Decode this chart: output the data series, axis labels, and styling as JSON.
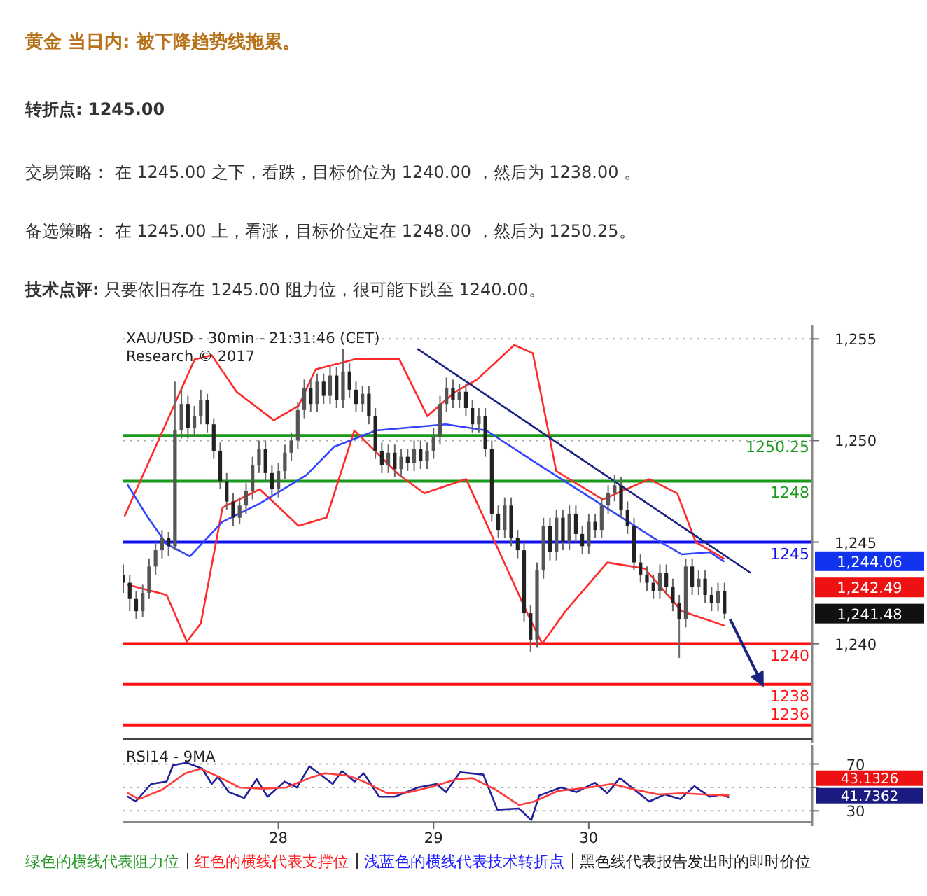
{
  "chart_data": [
    {
      "type": "candlestick",
      "title": "黄金 当日内: 被下降趋势线拖累。",
      "annotations": [
        "转折点: 1245.00",
        "交易策略： 在 1245.00 之下，看跌，目标价位为 1240.00 ，然后为 1238.00 。",
        "备选策略： 在 1245.00 上，看涨，目标价位定在 1248.00 ，然后为 1250.25。",
        "技术点评: 只要依旧存在 1245.00 阻力位，很可能下跌至 1240.00。",
        "XAU/USD - 30min - 21:31:46 (CET)",
        "Research © 2017",
        "1,244.06",
        "1,242.49",
        "1,241.48"
      ],
      "x": [
        27.0,
        27.0417,
        27.0833,
        27.125,
        27.1667,
        27.2083,
        27.25,
        27.2917,
        27.3333,
        27.375,
        27.4167,
        27.4583,
        27.5,
        27.5417,
        27.5833,
        27.625,
        27.6667,
        27.7083,
        27.75,
        27.7917,
        27.8333,
        27.875,
        27.9167,
        27.9583,
        28.0,
        28.0417,
        28.0833,
        28.125,
        28.1667,
        28.2083,
        28.25,
        28.2917,
        28.3333,
        28.375,
        28.4167,
        28.4583,
        28.5,
        28.5417,
        28.5833,
        28.625,
        28.6667,
        28.7083,
        28.75,
        28.7917,
        28.8333,
        28.875,
        28.9167,
        28.9583,
        29.0,
        29.0417,
        29.0833,
        29.125,
        29.1667,
        29.2083,
        29.25,
        29.2917,
        29.3333,
        29.375,
        29.4167,
        29.4583,
        29.5,
        29.5417,
        29.5833,
        29.625,
        29.6667,
        29.7083,
        29.75,
        29.7917,
        29.8333,
        29.875,
        29.9167,
        29.9583,
        30.0,
        30.0417,
        30.0833,
        30.125,
        30.1667,
        30.2083,
        30.25,
        30.2917,
        30.3333,
        30.375,
        30.4167,
        30.4583,
        30.5,
        30.5417,
        30.5833,
        30.625,
        30.6667,
        30.7083,
        30.75,
        30.7917,
        30.8333,
        30.875
      ],
      "ohlc": [
        [
          1243.4,
          1243.9,
          1242.5,
          1243.0
        ],
        [
          1243.0,
          1243.4,
          1241.6,
          1242.2
        ],
        [
          1242.2,
          1242.6,
          1241.2,
          1241.6
        ],
        [
          1241.6,
          1242.9,
          1241.3,
          1242.5
        ],
        [
          1242.5,
          1244.2,
          1242.2,
          1243.8
        ],
        [
          1243.8,
          1245.0,
          1243.4,
          1244.6
        ],
        [
          1244.6,
          1245.6,
          1244.2,
          1245.2
        ],
        [
          1245.2,
          1245.5,
          1244.3,
          1244.8
        ],
        [
          1244.8,
          1252.9,
          1244.6,
          1250.5
        ],
        [
          1250.5,
          1252.6,
          1250.1,
          1251.8
        ],
        [
          1251.8,
          1252.2,
          1250.1,
          1250.6
        ],
        [
          1250.6,
          1251.7,
          1250.2,
          1251.2
        ],
        [
          1251.2,
          1252.5,
          1250.8,
          1252.0
        ],
        [
          1252.0,
          1252.3,
          1250.4,
          1250.8
        ],
        [
          1250.8,
          1251.1,
          1249.1,
          1249.5
        ],
        [
          1249.5,
          1249.9,
          1247.6,
          1248.0
        ],
        [
          1248.0,
          1248.4,
          1246.6,
          1247.0
        ],
        [
          1247.0,
          1247.4,
          1245.8,
          1246.2
        ],
        [
          1246.2,
          1247.2,
          1245.9,
          1246.8
        ],
        [
          1246.8,
          1247.9,
          1246.4,
          1247.5
        ],
        [
          1247.5,
          1249.2,
          1247.1,
          1248.8
        ],
        [
          1248.8,
          1250.0,
          1248.4,
          1249.6
        ],
        [
          1249.6,
          1250.0,
          1248.0,
          1248.4
        ],
        [
          1248.4,
          1248.8,
          1247.2,
          1247.6
        ],
        [
          1247.6,
          1248.9,
          1247.2,
          1248.5
        ],
        [
          1248.5,
          1249.8,
          1248.1,
          1249.4
        ],
        [
          1249.4,
          1250.4,
          1249.0,
          1250.0
        ],
        [
          1250.0,
          1251.9,
          1249.6,
          1251.5
        ],
        [
          1251.5,
          1253.0,
          1251.1,
          1252.6
        ],
        [
          1252.6,
          1253.0,
          1251.4,
          1251.8
        ],
        [
          1251.8,
          1253.3,
          1251.4,
          1252.9
        ],
        [
          1252.9,
          1253.3,
          1251.8,
          1252.2
        ],
        [
          1252.2,
          1253.6,
          1251.8,
          1253.2
        ],
        [
          1253.2,
          1253.6,
          1251.6,
          1252.0
        ],
        [
          1252.0,
          1254.5,
          1251.6,
          1253.4
        ],
        [
          1253.4,
          1253.8,
          1252.1,
          1252.5
        ],
        [
          1252.5,
          1252.9,
          1251.4,
          1251.8
        ],
        [
          1251.8,
          1252.7,
          1251.4,
          1252.3
        ],
        [
          1252.3,
          1252.7,
          1250.8,
          1251.2
        ],
        [
          1251.2,
          1251.6,
          1249.1,
          1249.5
        ],
        [
          1249.5,
          1249.9,
          1248.4,
          1248.8
        ],
        [
          1248.8,
          1249.8,
          1248.4,
          1249.4
        ],
        [
          1249.4,
          1249.8,
          1248.2,
          1248.6
        ],
        [
          1248.6,
          1249.6,
          1248.2,
          1249.2
        ],
        [
          1249.2,
          1249.6,
          1248.5,
          1248.9
        ],
        [
          1248.9,
          1250.0,
          1248.5,
          1249.6
        ],
        [
          1249.6,
          1250.0,
          1248.6,
          1249.0
        ],
        [
          1249.0,
          1249.9,
          1248.6,
          1249.5
        ],
        [
          1249.5,
          1250.6,
          1249.1,
          1250.2
        ],
        [
          1250.2,
          1252.2,
          1249.8,
          1251.8
        ],
        [
          1251.8,
          1253.1,
          1251.4,
          1252.6
        ],
        [
          1252.6,
          1253.0,
          1251.6,
          1252.0
        ],
        [
          1252.0,
          1252.8,
          1251.6,
          1252.4
        ],
        [
          1252.4,
          1252.8,
          1251.2,
          1251.6
        ],
        [
          1251.6,
          1252.0,
          1250.4,
          1250.8
        ],
        [
          1250.8,
          1251.6,
          1250.4,
          1251.2
        ],
        [
          1251.2,
          1251.6,
          1249.2,
          1249.6
        ],
        [
          1249.6,
          1250.0,
          1246.0,
          1246.4
        ],
        [
          1246.4,
          1246.8,
          1245.2,
          1245.6
        ],
        [
          1245.6,
          1247.2,
          1245.2,
          1246.8
        ],
        [
          1246.8,
          1247.2,
          1244.8,
          1245.2
        ],
        [
          1245.2,
          1245.6,
          1244.2,
          1244.6
        ],
        [
          1244.6,
          1245.0,
          1241.1,
          1241.5
        ],
        [
          1241.5,
          1241.9,
          1239.6,
          1240.2
        ],
        [
          1240.2,
          1244.0,
          1239.8,
          1243.6
        ],
        [
          1243.6,
          1246.2,
          1243.2,
          1245.8
        ],
        [
          1245.8,
          1246.2,
          1244.1,
          1244.5
        ],
        [
          1244.5,
          1246.6,
          1244.1,
          1246.2
        ],
        [
          1246.2,
          1246.6,
          1244.6,
          1245.0
        ],
        [
          1245.0,
          1246.8,
          1244.6,
          1246.4
        ],
        [
          1246.4,
          1246.8,
          1245.0,
          1245.4
        ],
        [
          1245.4,
          1245.8,
          1244.4,
          1244.8
        ],
        [
          1244.8,
          1246.4,
          1244.4,
          1246.0
        ],
        [
          1246.0,
          1246.4,
          1245.2,
          1245.6
        ],
        [
          1245.6,
          1247.2,
          1245.2,
          1246.8
        ],
        [
          1246.8,
          1247.8,
          1246.4,
          1247.4
        ],
        [
          1247.4,
          1248.3,
          1247.0,
          1247.8
        ],
        [
          1247.8,
          1248.2,
          1246.2,
          1246.6
        ],
        [
          1246.6,
          1247.0,
          1245.4,
          1245.8
        ],
        [
          1245.8,
          1246.2,
          1243.6,
          1244.0
        ],
        [
          1244.0,
          1244.4,
          1243.0,
          1243.4
        ],
        [
          1243.4,
          1243.8,
          1242.6,
          1243.0
        ],
        [
          1243.0,
          1243.4,
          1242.2,
          1242.6
        ],
        [
          1242.6,
          1243.9,
          1242.2,
          1243.5
        ],
        [
          1243.5,
          1243.9,
          1242.4,
          1242.8
        ],
        [
          1242.8,
          1243.2,
          1241.6,
          1242.0
        ],
        [
          1242.0,
          1242.4,
          1239.3,
          1241.2
        ],
        [
          1241.2,
          1244.2,
          1240.8,
          1243.8
        ],
        [
          1243.8,
          1244.2,
          1242.4,
          1242.8
        ],
        [
          1242.8,
          1243.6,
          1242.4,
          1243.2
        ],
        [
          1243.2,
          1243.6,
          1242.0,
          1242.4
        ],
        [
          1242.4,
          1242.8,
          1241.6,
          1242.0
        ],
        [
          1242.0,
          1243.0,
          1241.6,
          1242.6
        ],
        [
          1242.6,
          1243.0,
          1241.2,
          1241.48
        ]
      ],
      "series": [
        {
          "type": "line",
          "color": "#ff2a2a",
          "x": [
            27.01,
            27.46,
            27.57,
            27.73,
            27.97,
            28.13,
            28.24,
            28.49,
            28.78,
            28.96,
            29.14,
            29.28,
            29.52,
            29.64,
            29.79,
            30.09,
            30.39,
            30.57,
            30.69,
            30.87
          ],
          "values": [
            1246.3,
            1254.0,
            1254.2,
            1252.4,
            1251.0,
            1251.7,
            1253.5,
            1254.0,
            1254.0,
            1251.2,
            1252.4,
            1253.0,
            1254.7,
            1254.3,
            1248.5,
            1247.1,
            1248.1,
            1247.4,
            1245.0,
            1244.2
          ]
        },
        {
          "type": "line",
          "color": "#ff2a2a",
          "x": [
            27.03,
            27.28,
            27.41,
            27.5,
            27.64,
            27.88,
            28.13,
            28.31,
            28.49,
            28.78,
            28.94,
            29.21,
            29.61,
            29.7,
            29.85,
            30.12,
            30.36,
            30.6,
            30.87
          ],
          "values": [
            1242.9,
            1242.4,
            1240.1,
            1241.0,
            1246.7,
            1247.6,
            1245.8,
            1246.2,
            1250.5,
            1248.3,
            1247.4,
            1248.1,
            1241.4,
            1240.0,
            1241.6,
            1244.0,
            1243.7,
            1241.6,
            1240.9
          ]
        },
        {
          "type": "line",
          "color": "#3344ff",
          "x": [
            27.03,
            27.16,
            27.28,
            27.43,
            27.64,
            27.88,
            28.18,
            28.36,
            28.63,
            29.08,
            29.34,
            29.7,
            30.09,
            30.42,
            30.6,
            30.78,
            30.87
          ],
          "values": [
            1247.8,
            1246.2,
            1244.9,
            1244.3,
            1246.0,
            1246.9,
            1248.3,
            1249.7,
            1250.5,
            1250.8,
            1250.5,
            1248.7,
            1246.8,
            1245.2,
            1244.4,
            1244.5,
            1244.06
          ]
        },
        {
          "type": "line",
          "color": "#1a237e",
          "x": [
            28.9,
            31.04
          ],
          "values": [
            1254.5,
            1243.5
          ]
        }
      ],
      "xlim": [
        27.0,
        31.44
      ],
      "ylim": [
        1235.3,
        1255.7
      ],
      "yticks": [
        {
          "value": 1255,
          "label": "1,255"
        },
        {
          "value": 1250,
          "label": "1,250"
        },
        {
          "value": 1245,
          "label": "1,245"
        },
        {
          "value": 1240,
          "label": "1,240"
        }
      ],
      "grid": "y",
      "tick_labels": "y",
      "ref_lines": [
        {
          "axis": "y",
          "value": 1250.25,
          "label": "1250.25",
          "color": "#1a9a1a"
        },
        {
          "axis": "y",
          "value": 1248,
          "label": "1248",
          "color": "#1a9a1a"
        },
        {
          "axis": "y",
          "value": 1245,
          "label": "1245",
          "color": "#1010ee"
        },
        {
          "axis": "y",
          "value": 1240,
          "label": "1240",
          "color": "#ff1010"
        },
        {
          "axis": "y",
          "value": 1238,
          "label": "1238",
          "color": "#ff1010"
        },
        {
          "axis": "y",
          "value": 1236,
          "label": "1236",
          "color": "#ff1010"
        }
      ]
    },
    {
      "type": "line",
      "title": "RSI14 - 9MA",
      "series": [
        {
          "color": "#22229a",
          "x": [
            27.03,
            27.08,
            27.18,
            27.28,
            27.32,
            27.41,
            27.51,
            27.57,
            27.61,
            27.68,
            27.78,
            27.86,
            27.93,
            28.04,
            28.12,
            28.2,
            28.35,
            28.41,
            28.49,
            28.55,
            28.65,
            28.75,
            28.9,
            29.02,
            29.08,
            29.17,
            29.32,
            29.41,
            29.55,
            29.63,
            29.68,
            29.82,
            29.92,
            30.04,
            30.12,
            30.2,
            30.39,
            30.49,
            30.59,
            30.68,
            30.78,
            30.86,
            30.9
          ],
          "values": [
            42,
            38,
            53,
            55,
            69,
            71,
            66,
            53,
            59,
            46,
            41,
            57,
            42,
            55,
            50,
            68,
            53,
            64,
            55,
            62,
            42,
            42,
            50,
            53,
            46,
            63,
            61,
            31,
            32,
            22,
            43,
            50,
            46,
            54,
            45,
            58,
            38,
            44,
            40,
            51,
            42,
            44,
            41.74
          ]
        },
        {
          "color": "#ff3b3b",
          "x": [
            27.03,
            27.1,
            27.25,
            27.4,
            27.5,
            27.6,
            27.75,
            27.9,
            28.05,
            28.2,
            28.3,
            28.45,
            28.55,
            28.7,
            28.85,
            29.0,
            29.15,
            29.25,
            29.4,
            29.55,
            29.65,
            29.8,
            30.0,
            30.15,
            30.3,
            30.45,
            30.6,
            30.75,
            30.9
          ],
          "values": [
            45,
            40,
            48,
            62,
            66,
            60,
            50,
            49,
            50,
            58,
            62,
            60,
            55,
            45,
            46,
            51,
            57,
            58,
            48,
            35,
            38,
            47,
            50,
            53,
            48,
            44,
            45,
            44,
            43.13
          ]
        }
      ],
      "xlim": [
        27.0,
        31.44
      ],
      "xticks": [
        28,
        29,
        30
      ],
      "ylim": [
        20.6,
        86.5
      ],
      "yticks": [
        70,
        {
          "value": 50,
          "label": null
        },
        30
      ],
      "grid": "y",
      "annotations": [
        "43.1326",
        "41.7362",
        "绿色的横线代表阻力位",
        "红色的横线代表支撑位",
        "浅蓝色的横线代表技术转折点",
        "黑色线代表报告发出时的即时价位"
      ]
    }
  ]
}
